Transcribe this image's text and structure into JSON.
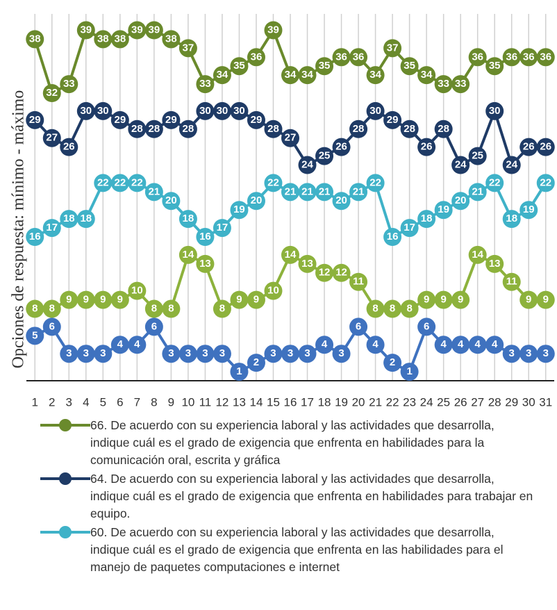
{
  "chart_data": {
    "type": "line",
    "y_label": "Opciones de respuesta: mínimo - máximo",
    "categories": [
      "1",
      "2",
      "3",
      "4",
      "5",
      "6",
      "7",
      "8",
      "9",
      "10",
      "11",
      "12",
      "13",
      "14",
      "15",
      "16",
      "17",
      "18",
      "19",
      "20",
      "21",
      "22",
      "23",
      "24",
      "25",
      "26",
      "27",
      "28",
      "29",
      "30",
      "31"
    ],
    "ylim": [
      0,
      40
    ],
    "grid": true,
    "legend": "bottom",
    "series": [
      {
        "name": "66. De acuerdo con su experiencia laboral y las actividades que desarrolla, indique cuál es el grado de exigencia que enfrenta en habilidades para la comunicación oral, escrita y gráfica",
        "color": "#6a8a2c",
        "values": [
          38,
          32,
          33,
          39,
          38,
          38,
          39,
          39,
          38,
          37,
          33,
          34,
          35,
          36,
          39,
          34,
          34,
          35,
          36,
          36,
          34,
          37,
          35,
          34,
          33,
          33,
          36,
          35,
          36,
          36,
          36
        ]
      },
      {
        "name": "64. De acuerdo con su experiencia laboral y las actividades que desarrolla, indique cuál es el grado de exigencia que enfrenta en habilidades para trabajar en equipo.",
        "color": "#1f3b66",
        "values": [
          29,
          27,
          26,
          30,
          30,
          29,
          28,
          28,
          29,
          28,
          30,
          30,
          30,
          29,
          28,
          27,
          24,
          25,
          26,
          28,
          30,
          29,
          28,
          26,
          28,
          24,
          25,
          30,
          24,
          26,
          26
        ]
      },
      {
        "name": "60. De acuerdo con su experiencia laboral y las actividades que desarrolla, indique cuál es el grado de exigencia que enfrenta en las habilidades para el manejo de paquetes computaciones e internet",
        "color": "#3fb2c8",
        "values": [
          16,
          17,
          18,
          18,
          22,
          22,
          22,
          21,
          20,
          18,
          16,
          17,
          19,
          20,
          22,
          21,
          21,
          21,
          20,
          21,
          22,
          16,
          17,
          18,
          19,
          20,
          21,
          22,
          18,
          19,
          22
        ]
      },
      {
        "color": "#8db23c",
        "values": [
          8,
          8,
          9,
          9,
          9,
          9,
          10,
          8,
          8,
          14,
          13,
          8,
          9,
          9,
          10,
          14,
          13,
          12,
          12,
          11,
          8,
          8,
          8,
          9,
          9,
          9,
          14,
          13,
          11,
          9,
          9
        ]
      },
      {
        "color": "#3f72bf",
        "values": [
          5,
          6,
          3,
          3,
          3,
          4,
          4,
          6,
          3,
          3,
          3,
          3,
          1,
          2,
          3,
          3,
          3,
          4,
          3,
          6,
          4,
          2,
          1,
          6,
          4,
          4,
          4,
          4,
          3,
          3,
          3
        ]
      }
    ]
  }
}
